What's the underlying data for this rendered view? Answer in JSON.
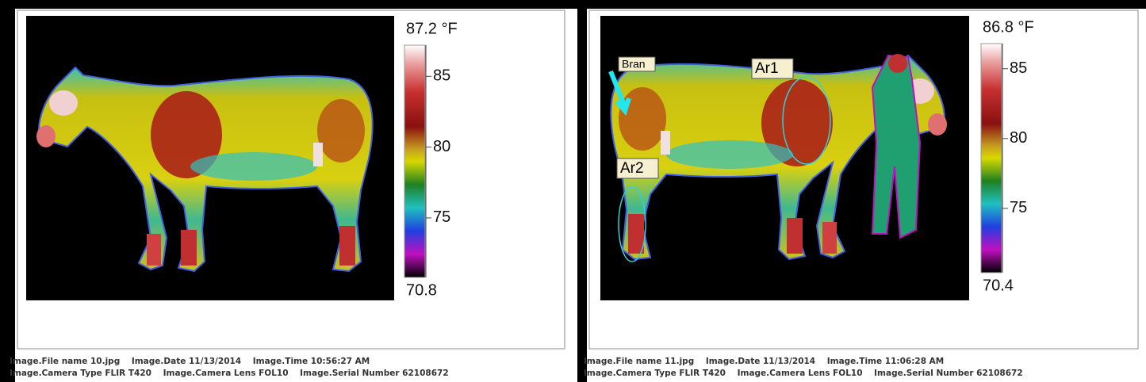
{
  "panels": [
    {
      "scale": {
        "lim": [
          70.8,
          87.2
        ],
        "ticks": [
          {
            "value": 87.2,
            "label": "87.2 °F"
          },
          85,
          80,
          75,
          70.8
        ]
      },
      "info": [
        "Image.File name 10.jpg    Image.Date 11/13/2014    Image.Time 10:56:27 AM",
        "Image.Camera Type FLIR T420    Image.Camera Lens FOL10    Image.Serial Number 62108672"
      ]
    },
    {
      "scale": {
        "lim": [
          70.4,
          86.8
        ],
        "ticks": [
          {
            "value": 86.8,
            "label": "86.8 °F"
          },
          85,
          80,
          75,
          70.4
        ]
      },
      "info": [
        "Image.File name 11.jpg    Image.Date 11/13/2014    Image.Time 11:06:28 AM",
        "Image.Camera Type FLIR T420    Image.Camera Lens FOL10    Image.Serial Number 62108672"
      ],
      "annotations": [
        "Bran",
        "Ar1",
        "Ar2"
      ]
    }
  ]
}
